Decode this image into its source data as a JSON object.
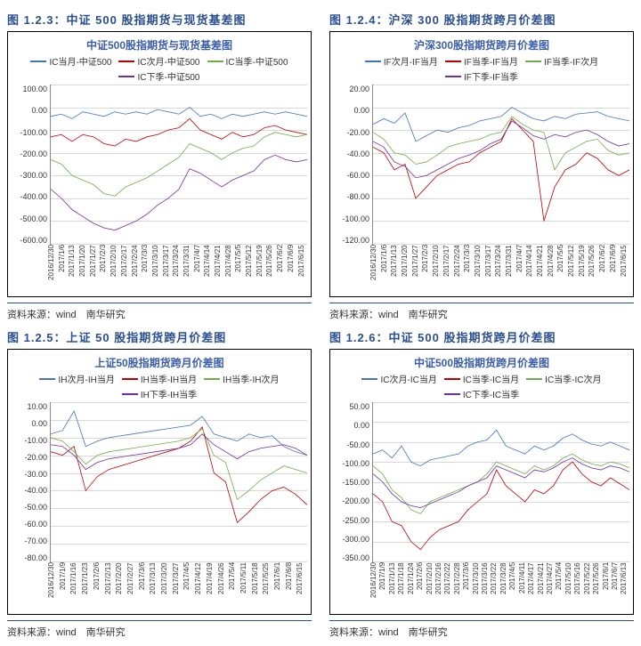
{
  "dates_a": [
    "2016/12/30",
    "2017/1/6",
    "2017/1/13",
    "2017/1/20",
    "2017/1/27",
    "2017/2/3",
    "2017/2/10",
    "2017/2/17",
    "2017/2/24",
    "2017/3/3",
    "2017/3/10",
    "2017/3/17",
    "2017/3/24",
    "2017/3/31",
    "2017/4/7",
    "2017/4/14",
    "2017/4/21",
    "2017/4/28",
    "2017/5/5",
    "2017/5/12",
    "2017/5/19",
    "2017/5/26",
    "2017/6/2",
    "2017/6/9",
    "2017/6/15"
  ],
  "dates_b": [
    "2016/12/30",
    "2017/1/9",
    "2017/1/16",
    "2017/1/23",
    "2017/2/6",
    "2017/2/13",
    "2017/2/20",
    "2017/2/27",
    "2017/3/6",
    "2017/3/13",
    "2017/3/20",
    "2017/3/27",
    "2017/4/5",
    "2017/4/12",
    "2017/4/19",
    "2017/4/26",
    "2017/5/4",
    "2017/5/11",
    "2017/5/18",
    "2017/5/25",
    "2017/6/1",
    "2017/6/8",
    "2017/6/15"
  ],
  "dates_c": [
    "2016/12/30",
    "2017/1/9",
    "2017/1/13",
    "2017/1/18",
    "2017/1/24",
    "2017/2/6",
    "2017/2/10",
    "2017/2/16",
    "2017/2/22",
    "2017/2/28",
    "2017/3/6",
    "2017/3/10",
    "2017/3/16",
    "2017/3/22",
    "2017/3/28",
    "2017/4/5",
    "2017/4/11",
    "2017/4/17",
    "2017/4/21",
    "2017/4/27",
    "2017/5/4",
    "2017/5/10",
    "2017/5/16",
    "2017/5/22",
    "2017/5/26",
    "2017/6/1",
    "2017/6/7",
    "2017/6/13"
  ],
  "source_label": "资料来源：",
  "source_value": "wind　南华研究",
  "charts": {
    "c123": {
      "caption": "图 1.2.3：中证 500 股指期货与现货基差图",
      "title": "中证500股指期货与现货基差图",
      "ylim": [
        -600,
        100
      ],
      "ytick_step": 100,
      "colors": {
        "blue": "#4472c4",
        "red": "#c00000",
        "green": "#70ad47",
        "purple": "#7030a0"
      },
      "legend": [
        {
          "label": "IC当月-中证500",
          "color": "blue"
        },
        {
          "label": "IC次月-中证500",
          "color": "red"
        },
        {
          "label": "IC当季-中证500",
          "color": "green"
        },
        {
          "label": "IC下季-中证500",
          "color": "purple"
        }
      ],
      "series": {
        "blue": [
          -40,
          -30,
          -50,
          -20,
          -30,
          -40,
          -20,
          -30,
          -20,
          -30,
          -10,
          -20,
          -30,
          0,
          -40,
          -30,
          -50,
          -30,
          -40,
          -30,
          -20,
          -30,
          -20,
          -30,
          -40
        ],
        "red": [
          -130,
          -120,
          -150,
          -120,
          -130,
          -160,
          -170,
          -140,
          -150,
          -130,
          -120,
          -100,
          -90,
          -50,
          -100,
          -120,
          -140,
          -110,
          -130,
          -120,
          -90,
          -80,
          -100,
          -110,
          -120
        ],
        "green": [
          -230,
          -250,
          -300,
          -320,
          -340,
          -380,
          -390,
          -350,
          -330,
          -310,
          -280,
          -250,
          -220,
          -160,
          -180,
          -200,
          -230,
          -200,
          -180,
          -170,
          -130,
          -110,
          -120,
          -130,
          -120
        ],
        "purple": [
          -360,
          -400,
          -450,
          -480,
          -510,
          -530,
          -540,
          -520,
          -500,
          -470,
          -430,
          -400,
          -360,
          -270,
          -290,
          -320,
          -350,
          -320,
          -300,
          -280,
          -230,
          -210,
          -230,
          -240,
          -230
        ]
      },
      "xdates": "dates_a"
    },
    "c124": {
      "caption": "图 1.2.4：沪深 300 股指期货跨月价差图",
      "title": "沪深300股指期货跨月价差图",
      "ylim": [
        -120,
        20
      ],
      "ytick_step": 20,
      "colors": {
        "blue": "#4472c4",
        "red": "#c00000",
        "green": "#70ad47",
        "purple": "#7030a0"
      },
      "legend": [
        {
          "label": "IF次月-IF当月",
          "color": "blue"
        },
        {
          "label": "IF当季-IF当月",
          "color": "red"
        },
        {
          "label": "IF当季-IF次月",
          "color": "green"
        },
        {
          "label": "IF下季-IF当季",
          "color": "purple"
        }
      ],
      "series": {
        "blue": [
          -15,
          -10,
          -14,
          -5,
          -30,
          -25,
          -20,
          -22,
          -18,
          -16,
          -12,
          -10,
          -8,
          0,
          -5,
          -10,
          -12,
          -8,
          -10,
          -6,
          -5,
          -4,
          -8,
          -10,
          -12
        ],
        "red": [
          -35,
          -40,
          -55,
          -50,
          -80,
          -70,
          -60,
          -55,
          -50,
          -48,
          -40,
          -35,
          -30,
          -10,
          -20,
          -30,
          -100,
          -70,
          -55,
          -50,
          -40,
          -45,
          -55,
          -60,
          -55
        ],
        "green": [
          -22,
          -28,
          -40,
          -42,
          -50,
          -48,
          -42,
          -35,
          -32,
          -30,
          -28,
          -24,
          -22,
          -8,
          -15,
          -20,
          -22,
          -55,
          -40,
          -35,
          -30,
          -28,
          -38,
          -42,
          -40
        ],
        "purple": [
          -30,
          -35,
          -48,
          -52,
          -62,
          -60,
          -55,
          -50,
          -45,
          -42,
          -38,
          -32,
          -28,
          -12,
          -18,
          -25,
          -28,
          -24,
          -26,
          -22,
          -20,
          -24,
          -30,
          -34,
          -32
        ]
      },
      "xdates": "dates_a"
    },
    "c125": {
      "caption": "图 1.2.5：上证 50 股指期货跨月价差图",
      "title": "上证50股指期货跨月价差图",
      "ylim": [
        -80,
        10
      ],
      "ytick_step": 10,
      "colors": {
        "blue": "#4472c4",
        "red": "#c00000",
        "green": "#70ad47",
        "purple": "#7030a0"
      },
      "legend": [
        {
          "label": "IH次月-IH当月",
          "color": "blue"
        },
        {
          "label": "IH当季-IH当月",
          "color": "red"
        },
        {
          "label": "IH当季-IH次月",
          "color": "green"
        },
        {
          "label": "IH下季-IH当季",
          "color": "purple"
        }
      ],
      "series": {
        "blue": [
          -8,
          -6,
          5,
          -15,
          -12,
          -10,
          -9,
          -8,
          -7,
          -6,
          -5,
          -4,
          -3,
          2,
          -8,
          -10,
          -12,
          -8,
          -10,
          -9,
          -15,
          -18,
          -20
        ],
        "red": [
          -18,
          -20,
          -15,
          -40,
          -32,
          -28,
          -26,
          -24,
          -22,
          -20,
          -18,
          -16,
          -12,
          -4,
          -30,
          -35,
          -58,
          -52,
          -45,
          -40,
          -38,
          -42,
          -48
        ],
        "green": [
          -10,
          -12,
          -18,
          -25,
          -20,
          -18,
          -17,
          -16,
          -15,
          -14,
          -13,
          -12,
          -10,
          -5,
          -20,
          -24,
          -45,
          -40,
          -34,
          -30,
          -26,
          -28,
          -30
        ],
        "purple": [
          -14,
          -15,
          -20,
          -28,
          -24,
          -22,
          -21,
          -20,
          -19,
          -18,
          -17,
          -16,
          -14,
          -8,
          -14,
          -18,
          -22,
          -18,
          -16,
          -15,
          -14,
          -16,
          -20
        ]
      },
      "xdates": "dates_b"
    },
    "c126": {
      "caption": "图 1.2.6：中证 500 股指期货跨月价差图",
      "title": "中证500股指期货跨月价差图",
      "ylim": [
        -350,
        50
      ],
      "ytick_step": 50,
      "colors": {
        "blue": "#4472c4",
        "red": "#c00000",
        "green": "#70ad47",
        "purple": "#7030a0"
      },
      "legend": [
        {
          "label": "IC次月-IC当月",
          "color": "blue"
        },
        {
          "label": "IC当季-IC当月",
          "color": "red"
        },
        {
          "label": "IC当季-IC次月",
          "color": "green"
        },
        {
          "label": "IC下季-IC当季",
          "color": "purple"
        }
      ],
      "series": {
        "blue": [
          -80,
          -70,
          -90,
          -60,
          -100,
          -110,
          -95,
          -90,
          -85,
          -80,
          -60,
          -50,
          -45,
          -20,
          -60,
          -70,
          -80,
          -60,
          -70,
          -60,
          -40,
          -30,
          -45,
          -55,
          -60,
          -50,
          -60,
          -70
        ],
        "red": [
          -180,
          -200,
          -250,
          -260,
          -300,
          -320,
          -290,
          -270,
          -260,
          -250,
          -220,
          -200,
          -180,
          -120,
          -160,
          -180,
          -200,
          -170,
          -180,
          -160,
          -120,
          -100,
          -130,
          -150,
          -160,
          -140,
          -155,
          -170
        ],
        "green": [
          -110,
          -130,
          -170,
          -190,
          -220,
          -230,
          -200,
          -190,
          -180,
          -170,
          -160,
          -150,
          -130,
          -100,
          -110,
          -120,
          -130,
          -110,
          -120,
          -110,
          -90,
          -80,
          -95,
          -105,
          -110,
          -100,
          -105,
          -115
        ],
        "purple": [
          -130,
          -150,
          -180,
          -200,
          -210,
          -215,
          -205,
          -195,
          -185,
          -175,
          -160,
          -150,
          -140,
          -110,
          -120,
          -130,
          -140,
          -120,
          -125,
          -115,
          -100,
          -90,
          -105,
          -115,
          -120,
          -110,
          -115,
          -125
        ]
      },
      "xdates": "dates_c"
    }
  },
  "layout": [
    [
      "c123",
      "c124"
    ],
    [
      "c125",
      "c126"
    ]
  ],
  "title_color": "#3b5ea8",
  "caption_color": "#2a4f8f",
  "grid_color": "#d8d8d8"
}
